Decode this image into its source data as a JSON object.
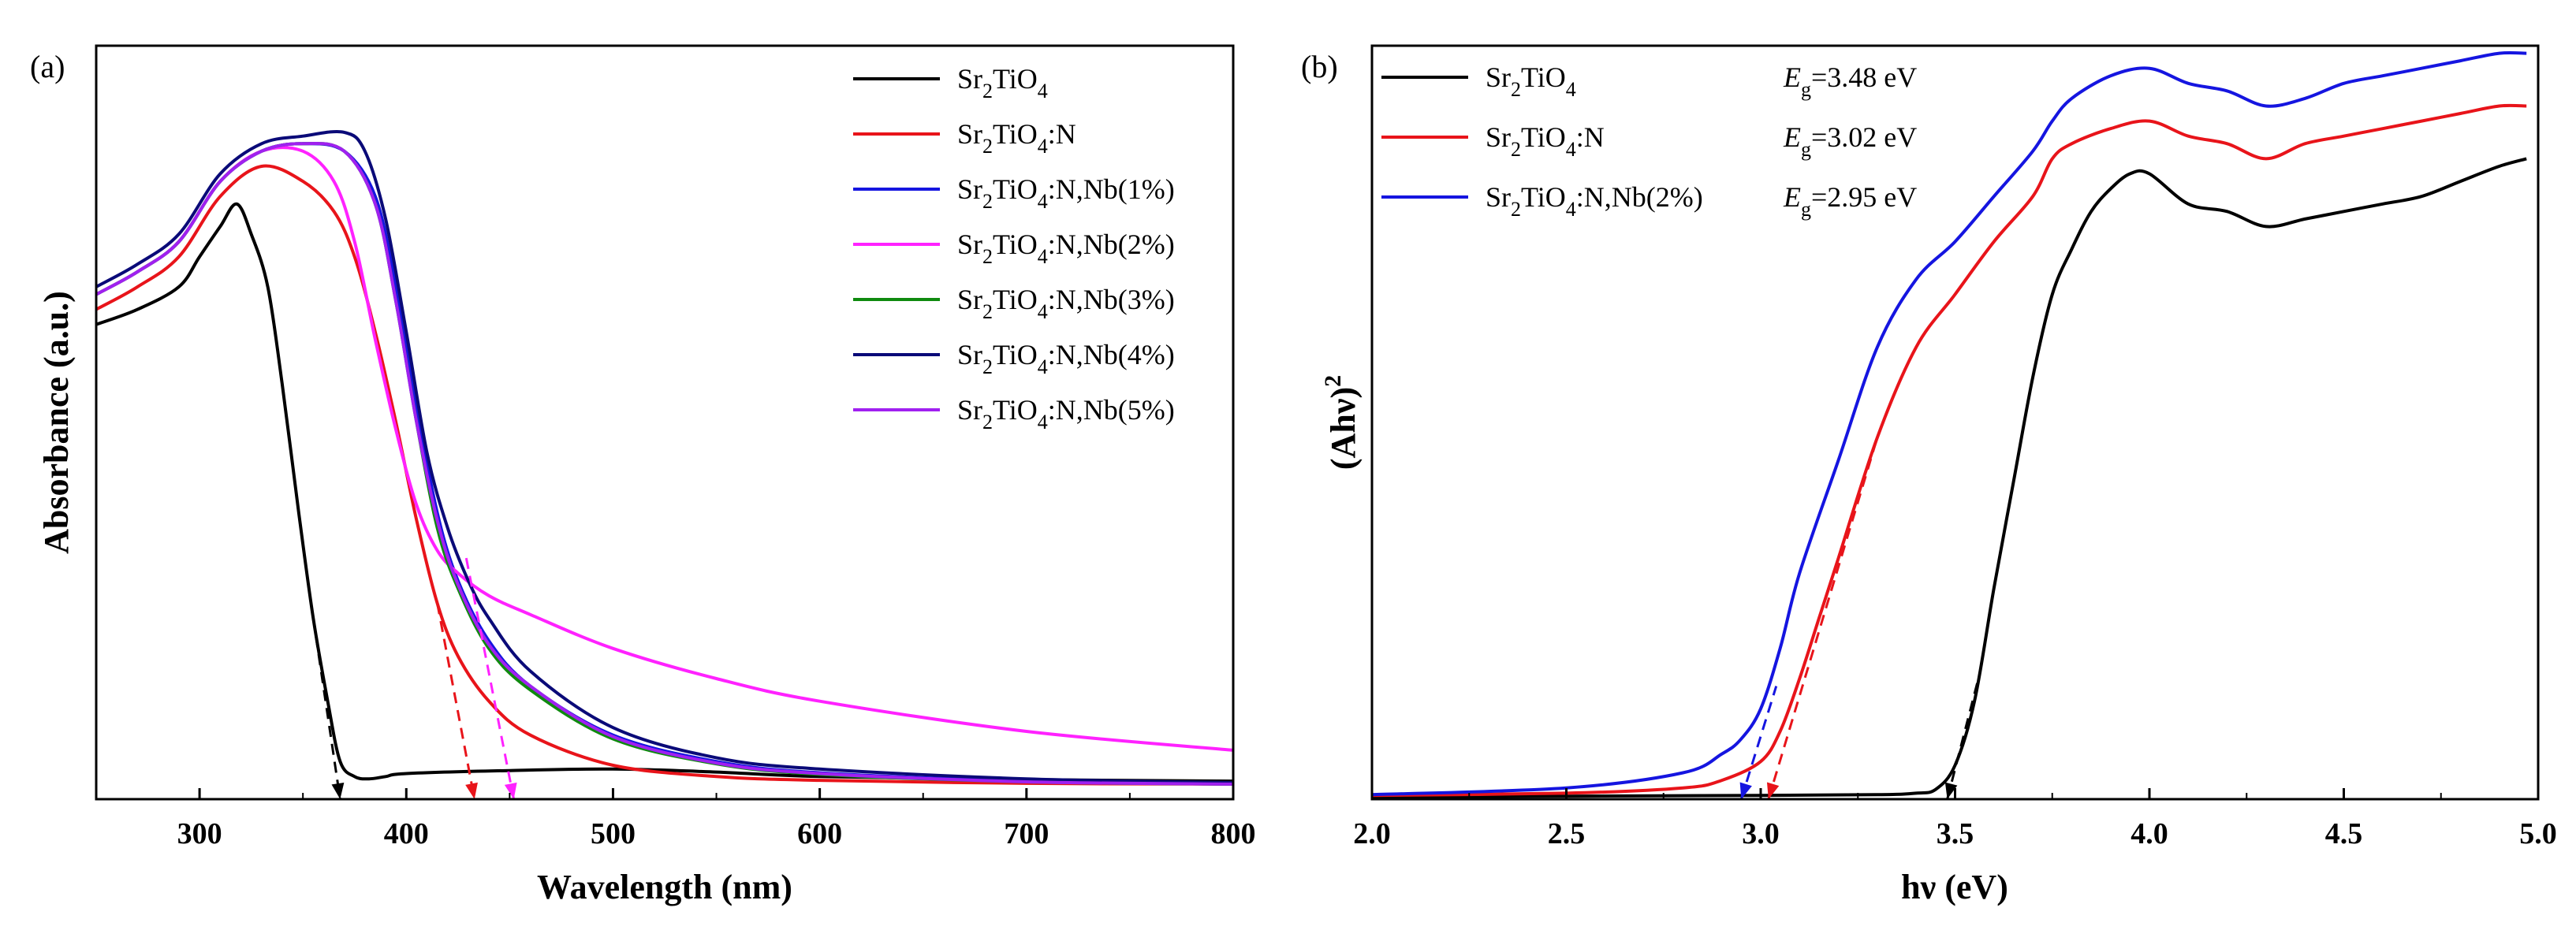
{
  "chart_data": [
    {
      "type": "line",
      "panel_label": "(a)",
      "xlabel": "Wavelength (nm)",
      "ylabel": "Absorbance (a.u.)",
      "xlim": [
        250,
        800
      ],
      "ylim": [
        0,
        1
      ],
      "xticks": [
        300,
        400,
        500,
        600,
        700,
        800
      ],
      "legend_position": "top-right",
      "series": [
        {
          "name": "Sr2TiO4",
          "legend": [
            "Sr",
            "2",
            "TiO",
            "4",
            ""
          ],
          "color": "#000000",
          "x": [
            250,
            270,
            290,
            300,
            310,
            318,
            325,
            333,
            340,
            348,
            355,
            362,
            368,
            375,
            382,
            390,
            400,
            450,
            500,
            550,
            600,
            700,
            800
          ],
          "y": [
            0.63,
            0.65,
            0.68,
            0.72,
            0.76,
            0.79,
            0.75,
            0.68,
            0.55,
            0.38,
            0.24,
            0.13,
            0.05,
            0.03,
            0.027,
            0.03,
            0.034,
            0.038,
            0.04,
            0.036,
            0.03,
            0.026,
            0.024
          ]
        },
        {
          "name": "Sr2TiO4:N",
          "legend": [
            "Sr",
            "2",
            "TiO",
            "4",
            ":N"
          ],
          "color": "#e8141a",
          "x": [
            250,
            270,
            290,
            310,
            330,
            350,
            365,
            375,
            385,
            395,
            405,
            415,
            425,
            440,
            460,
            500,
            550,
            600,
            700,
            800
          ],
          "y": [
            0.65,
            0.68,
            0.72,
            0.8,
            0.84,
            0.82,
            0.78,
            0.72,
            0.62,
            0.5,
            0.37,
            0.26,
            0.19,
            0.13,
            0.085,
            0.045,
            0.03,
            0.025,
            0.021,
            0.02
          ]
        },
        {
          "name": "Sr2TiO4:N,Nb(1%)",
          "legend": [
            "Sr",
            "2",
            "TiO",
            "4",
            ":N,Nb(1%)"
          ],
          "color": "#1515e0",
          "x": [
            250,
            270,
            290,
            310,
            330,
            350,
            370,
            385,
            395,
            405,
            415,
            425,
            440,
            460,
            500,
            550,
            600,
            700,
            800
          ],
          "y": [
            0.67,
            0.7,
            0.74,
            0.82,
            0.86,
            0.87,
            0.86,
            0.8,
            0.68,
            0.52,
            0.38,
            0.29,
            0.21,
            0.15,
            0.085,
            0.05,
            0.035,
            0.024,
            0.02
          ]
        },
        {
          "name": "Sr2TiO4:N,Nb(2%)",
          "legend": [
            "Sr",
            "2",
            "TiO",
            "4",
            ":N,Nb(2%)"
          ],
          "color": "#ff22ff",
          "x": [
            250,
            270,
            290,
            310,
            330,
            350,
            365,
            375,
            385,
            395,
            405,
            415,
            425,
            440,
            460,
            500,
            550,
            600,
            700,
            800
          ],
          "y": [
            0.67,
            0.7,
            0.74,
            0.82,
            0.86,
            0.86,
            0.82,
            0.74,
            0.61,
            0.49,
            0.39,
            0.33,
            0.3,
            0.27,
            0.245,
            0.2,
            0.16,
            0.13,
            0.09,
            0.065
          ]
        },
        {
          "name": "Sr2TiO4:N,Nb(3%)",
          "legend": [
            "Sr",
            "2",
            "TiO",
            "4",
            ":N,Nb(3%)"
          ],
          "color": "#0f8a0f",
          "x": [
            250,
            270,
            290,
            310,
            330,
            350,
            370,
            385,
            395,
            405,
            415,
            425,
            440,
            460,
            500,
            550,
            600,
            700,
            800
          ],
          "y": [
            0.67,
            0.7,
            0.74,
            0.82,
            0.86,
            0.87,
            0.86,
            0.79,
            0.66,
            0.5,
            0.36,
            0.28,
            0.2,
            0.145,
            0.08,
            0.047,
            0.033,
            0.023,
            0.02
          ]
        },
        {
          "name": "Sr2TiO4:N,Nb(4%)",
          "legend": [
            "Sr",
            "2",
            "TiO",
            "4",
            ":N,Nb(4%)"
          ],
          "color": "#0a0a78",
          "x": [
            250,
            270,
            290,
            310,
            330,
            350,
            370,
            380,
            390,
            400,
            410,
            420,
            430,
            440,
            460,
            500,
            550,
            600,
            700,
            800
          ],
          "y": [
            0.68,
            0.71,
            0.75,
            0.83,
            0.87,
            0.88,
            0.885,
            0.86,
            0.77,
            0.62,
            0.46,
            0.36,
            0.29,
            0.24,
            0.17,
            0.095,
            0.055,
            0.04,
            0.027,
            0.022
          ]
        },
        {
          "name": "Sr2TiO4:N,Nb(5%)",
          "legend": [
            "Sr",
            "2",
            "TiO",
            "4",
            ":N,Nb(5%)"
          ],
          "color": "#a020f0",
          "x": [
            250,
            270,
            290,
            310,
            330,
            350,
            370,
            385,
            395,
            405,
            415,
            425,
            440,
            460,
            500,
            550,
            600,
            700,
            800
          ],
          "y": [
            0.67,
            0.7,
            0.74,
            0.82,
            0.86,
            0.87,
            0.86,
            0.79,
            0.66,
            0.5,
            0.37,
            0.285,
            0.205,
            0.15,
            0.083,
            0.048,
            0.034,
            0.023,
            0.02
          ]
        }
      ],
      "tangents": [
        {
          "color": "#000000",
          "x": [
            355,
            368
          ],
          "y": [
            0.24,
            0.0
          ]
        },
        {
          "color": "#e8141a",
          "x": [
            415,
            433
          ],
          "y": [
            0.26,
            0.0
          ]
        },
        {
          "color": "#ff22ff",
          "x": [
            429,
            452
          ],
          "y": [
            0.32,
            0.0
          ]
        }
      ]
    },
    {
      "type": "line",
      "panel_label": "(b)",
      "xlabel": "hν (eV)",
      "ylabel": "(Ahν)",
      "ylabel_sup": "2",
      "xlim": [
        2.0,
        5.0
      ],
      "ylim": [
        0,
        1
      ],
      "xticks": [
        "2.0",
        "2.5",
        "3.0",
        "3.5",
        "4.0",
        "4.5",
        "5.0"
      ],
      "legend_position": "top-left",
      "series": [
        {
          "name": "Sr2TiO4",
          "legend": [
            "Sr",
            "2",
            "TiO",
            "4",
            ""
          ],
          "eg_label": "=3.48 eV",
          "color": "#000000",
          "x": [
            2.0,
            2.5,
            3.0,
            3.3,
            3.4,
            3.45,
            3.5,
            3.55,
            3.6,
            3.65,
            3.7,
            3.75,
            3.8,
            3.85,
            3.9,
            3.95,
            4.0,
            4.1,
            4.2,
            4.3,
            4.4,
            4.5,
            4.6,
            4.7,
            4.8,
            4.9,
            4.97
          ],
          "y": [
            0.003,
            0.004,
            0.005,
            0.006,
            0.008,
            0.013,
            0.045,
            0.13,
            0.28,
            0.42,
            0.56,
            0.67,
            0.73,
            0.78,
            0.81,
            0.83,
            0.83,
            0.79,
            0.78,
            0.76,
            0.77,
            0.78,
            0.79,
            0.8,
            0.82,
            0.84,
            0.85
          ]
        },
        {
          "name": "Sr2TiO4:N",
          "legend": [
            "Sr",
            "2",
            "TiO",
            "4",
            ":N"
          ],
          "eg_label": "=3.02 eV",
          "color": "#e8141a",
          "x": [
            2.0,
            2.5,
            2.8,
            2.9,
            3.0,
            3.05,
            3.1,
            3.15,
            3.2,
            3.3,
            3.4,
            3.5,
            3.6,
            3.7,
            3.75,
            3.8,
            3.9,
            4.0,
            4.1,
            4.2,
            4.3,
            4.4,
            4.5,
            4.6,
            4.7,
            4.8,
            4.9,
            4.97
          ],
          "y": [
            0.005,
            0.008,
            0.015,
            0.025,
            0.05,
            0.09,
            0.16,
            0.24,
            0.32,
            0.48,
            0.6,
            0.67,
            0.74,
            0.8,
            0.85,
            0.87,
            0.89,
            0.9,
            0.88,
            0.87,
            0.85,
            0.87,
            0.88,
            0.89,
            0.9,
            0.91,
            0.92,
            0.92
          ]
        },
        {
          "name": "Sr2TiO4:N,Nb(2%)",
          "legend": [
            "Sr",
            "2",
            "TiO",
            "4",
            ":N,Nb(2%)"
          ],
          "eg_label": "=2.95 eV",
          "color": "#1515e0",
          "x": [
            2.0,
            2.5,
            2.8,
            2.9,
            2.95,
            3.0,
            3.05,
            3.1,
            3.2,
            3.3,
            3.4,
            3.5,
            3.6,
            3.7,
            3.75,
            3.8,
            3.9,
            4.0,
            4.1,
            4.2,
            4.3,
            4.4,
            4.5,
            4.6,
            4.7,
            4.8,
            4.9,
            4.97
          ],
          "y": [
            0.006,
            0.015,
            0.035,
            0.06,
            0.08,
            0.12,
            0.2,
            0.3,
            0.45,
            0.6,
            0.69,
            0.74,
            0.8,
            0.86,
            0.9,
            0.93,
            0.96,
            0.97,
            0.95,
            0.94,
            0.92,
            0.93,
            0.95,
            0.96,
            0.97,
            0.98,
            0.99,
            0.99
          ]
        }
      ],
      "tangents": [
        {
          "color": "#000000",
          "x": [
            3.48,
            3.56
          ],
          "y": [
            0.0,
            0.16
          ]
        },
        {
          "color": "#e8141a",
          "x": [
            3.02,
            3.3
          ],
          "y": [
            0.0,
            0.48
          ]
        },
        {
          "color": "#1515e0",
          "x": [
            2.95,
            3.04
          ],
          "y": [
            0.0,
            0.15
          ]
        }
      ]
    }
  ]
}
